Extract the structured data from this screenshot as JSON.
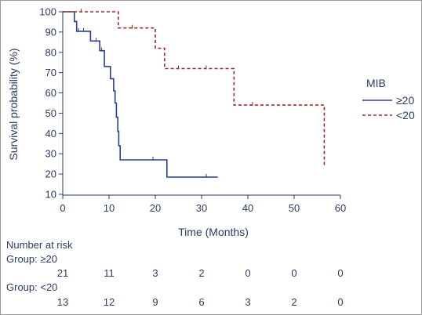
{
  "chart_data": {
    "type": "line",
    "ylabel": "Survival probability (%)",
    "xlabel": "Time (Months)",
    "xlim": [
      0,
      60
    ],
    "ylim": [
      10,
      100
    ],
    "x_ticks": [
      "0",
      "10",
      "20",
      "30",
      "40",
      "50",
      "60"
    ],
    "y_ticks": [
      "10",
      "20",
      "30",
      "40",
      "50",
      "60",
      "70",
      "80",
      "90",
      "100"
    ],
    "legend": {
      "title": "MIB",
      "position": "right"
    },
    "series": [
      {
        "name": "≥20",
        "color": "#2c3e8f",
        "style": "solid",
        "steps": [
          [
            0,
            100
          ],
          [
            2.5,
            100
          ],
          [
            2.5,
            95.2
          ],
          [
            3.0,
            95.2
          ],
          [
            3.0,
            90.4
          ],
          [
            6,
            90.4
          ],
          [
            6,
            85.6
          ],
          [
            8,
            85.6
          ],
          [
            8,
            80.8
          ],
          [
            9,
            80.8
          ],
          [
            9,
            73
          ],
          [
            10.3,
            73
          ],
          [
            10.3,
            67
          ],
          [
            11,
            67
          ],
          [
            11,
            61
          ],
          [
            11.3,
            61
          ],
          [
            11.3,
            55
          ],
          [
            11.6,
            55
          ],
          [
            11.6,
            48
          ],
          [
            11.9,
            48
          ],
          [
            11.9,
            41
          ],
          [
            12.1,
            41
          ],
          [
            12.1,
            34
          ],
          [
            12.4,
            34
          ],
          [
            12.4,
            27
          ],
          [
            22.5,
            27
          ],
          [
            22.5,
            18.5
          ],
          [
            33.5,
            18.5
          ]
        ],
        "censored": [
          [
            3.4,
            90.4
          ],
          [
            4.5,
            90.4
          ],
          [
            7.2,
            85.6
          ],
          [
            8.4,
            80.8
          ],
          [
            19.5,
            27
          ],
          [
            31,
            18.5
          ]
        ]
      },
      {
        "name": "<20",
        "color": "#a02828",
        "style": "dashed",
        "steps": [
          [
            0,
            100
          ],
          [
            12,
            100
          ],
          [
            12,
            92
          ],
          [
            20,
            92
          ],
          [
            20,
            82
          ],
          [
            22,
            82
          ],
          [
            22,
            72
          ],
          [
            37,
            72
          ],
          [
            37,
            54
          ],
          [
            56.5,
            54
          ],
          [
            56.5,
            24
          ]
        ],
        "censored": [
          [
            4,
            100
          ],
          [
            15,
            92
          ],
          [
            25,
            72
          ],
          [
            31,
            72
          ],
          [
            41,
            54
          ]
        ]
      }
    ],
    "number_at_risk": {
      "title": "Number at risk",
      "groups": [
        {
          "label": "Group: ≥20",
          "values": [
            "21",
            "11",
            "3",
            "2",
            "0",
            "0",
            "0"
          ]
        },
        {
          "label": "Group: <20",
          "values": [
            "13",
            "12",
            "9",
            "6",
            "3",
            "2",
            "0"
          ]
        }
      ]
    }
  }
}
